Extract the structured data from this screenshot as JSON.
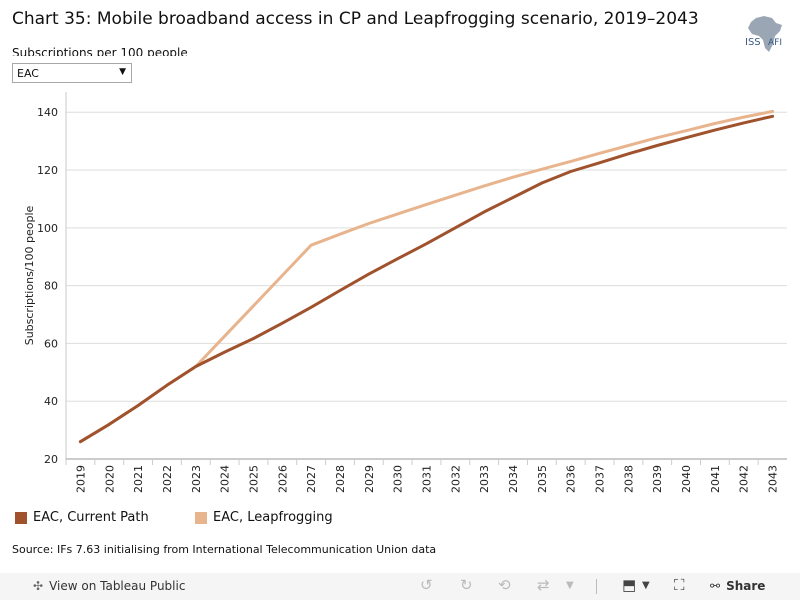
{
  "header": {
    "title": "Chart 35: Mobile broadband access in CP and Leapfrogging scenario, 2019–2043",
    "subtitle": "Subscriptions per 100 people",
    "logo_text": "ISS",
    "logo_text2": "AFI"
  },
  "filter": {
    "selected": "EAC"
  },
  "legend": {
    "items": [
      "EAC, Current Path",
      "EAC, Leapfrogging"
    ]
  },
  "source": "Source: IFs 7.63 initialising from International Telecommunication Union data",
  "footer": {
    "view_label": "View on Tableau Public",
    "share_label": "Share"
  },
  "colors": {
    "current_path": "#a0522d",
    "leapfrogging": "#e8b48e",
    "grid": "#dddddd"
  },
  "chart_data": {
    "type": "line",
    "ylabel": "Subscriptions/100 people",
    "xlabel": "",
    "ylim": [
      20,
      147
    ],
    "yticks": [
      20,
      40,
      60,
      80,
      100,
      120,
      140
    ],
    "x": [
      "2019",
      "2020",
      "2021",
      "2022",
      "2023",
      "2024",
      "2025",
      "2026",
      "2027",
      "2028",
      "2029",
      "2030",
      "2031",
      "2032",
      "2033",
      "2034",
      "2035",
      "2036",
      "2037",
      "2038",
      "2039",
      "2040",
      "2041",
      "2042",
      "2043"
    ],
    "series": [
      {
        "name": "EAC, Current Path",
        "values": [
          26,
          32,
          38.5,
          45.5,
          52,
          57,
          61.7,
          67,
          72.5,
          78.3,
          84,
          89.3,
          94.5,
          100,
          105.5,
          110.5,
          115.5,
          119.5,
          122.5,
          125.6,
          128.5,
          131.2,
          133.8,
          136.3,
          138.6
        ]
      },
      {
        "name": "EAC, Leapfrogging",
        "values": [
          26,
          32,
          38.5,
          45.5,
          52,
          62.5,
          73,
          83.5,
          94,
          97.8,
          101.5,
          104.8,
          108.1,
          111.3,
          114.5,
          117.5,
          120.3,
          123,
          125.8,
          128.5,
          131.2,
          133.6,
          136.1,
          138.3,
          140.3
        ]
      }
    ]
  }
}
